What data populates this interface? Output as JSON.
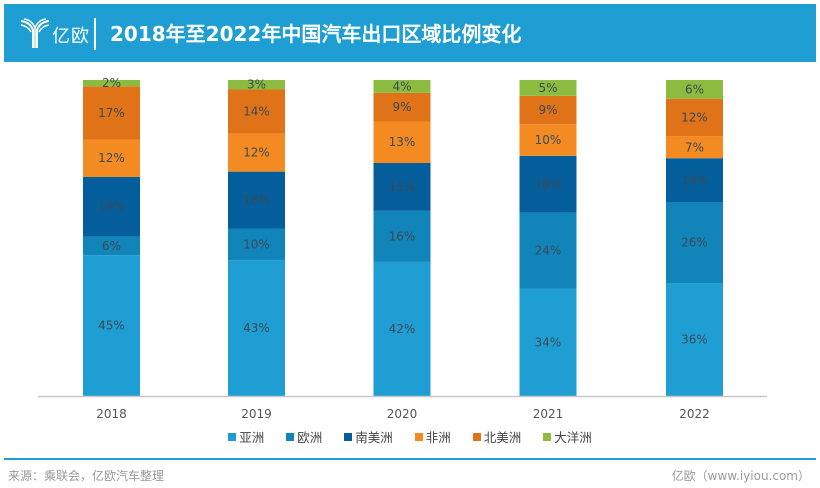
{
  "header": {
    "logo_text": "亿欧",
    "title": "2018年至2022年中国汽车出口区域比例变化"
  },
  "chart_data": {
    "type": "bar",
    "stacked": true,
    "title": "2018年至2022年中国汽车出口区域比例变化",
    "categories": [
      "2018",
      "2019",
      "2020",
      "2021",
      "2022"
    ],
    "series": [
      {
        "name": "亚洲",
        "color": "#1e9ed3",
        "values": [
          45,
          43,
          42,
          34,
          36
        ],
        "labels": [
          "45%",
          "43%",
          "42%",
          "34%",
          "36%"
        ]
      },
      {
        "name": "欧洲",
        "color": "#1184b9",
        "values": [
          6,
          10,
          16,
          24,
          26
        ],
        "labels": [
          "6%",
          "10%",
          "16%",
          "24%",
          "26%"
        ]
      },
      {
        "name": "南美洲",
        "color": "#045e9b",
        "values": [
          19,
          18,
          15,
          18,
          14
        ],
        "labels": [
          "19%",
          "18%",
          "15%",
          "18%",
          "14%"
        ]
      },
      {
        "name": "非洲",
        "color": "#f48b22",
        "values": [
          12,
          12,
          13,
          10,
          7
        ],
        "labels": [
          "12%",
          "12%",
          "13%",
          "10%",
          "7%"
        ]
      },
      {
        "name": "北美洲",
        "color": "#e07318",
        "values": [
          17,
          14,
          9,
          9,
          12
        ],
        "labels": [
          "17%",
          "14%",
          "9%",
          "9%",
          "12%"
        ]
      },
      {
        "name": "大洋洲",
        "color": "#8cbc3f",
        "values": [
          2,
          3,
          4,
          5,
          6
        ],
        "labels": [
          "2%",
          "3%",
          "4%",
          "5%",
          "6%"
        ]
      }
    ],
    "xlabel": "",
    "ylabel": "",
    "ylim": [
      0,
      100
    ],
    "grid": false,
    "legend": "bottom"
  },
  "footer": {
    "source": "来源：乘联会，亿欧汽车整理",
    "credit": "亿欧（www.iyiou.com）"
  }
}
